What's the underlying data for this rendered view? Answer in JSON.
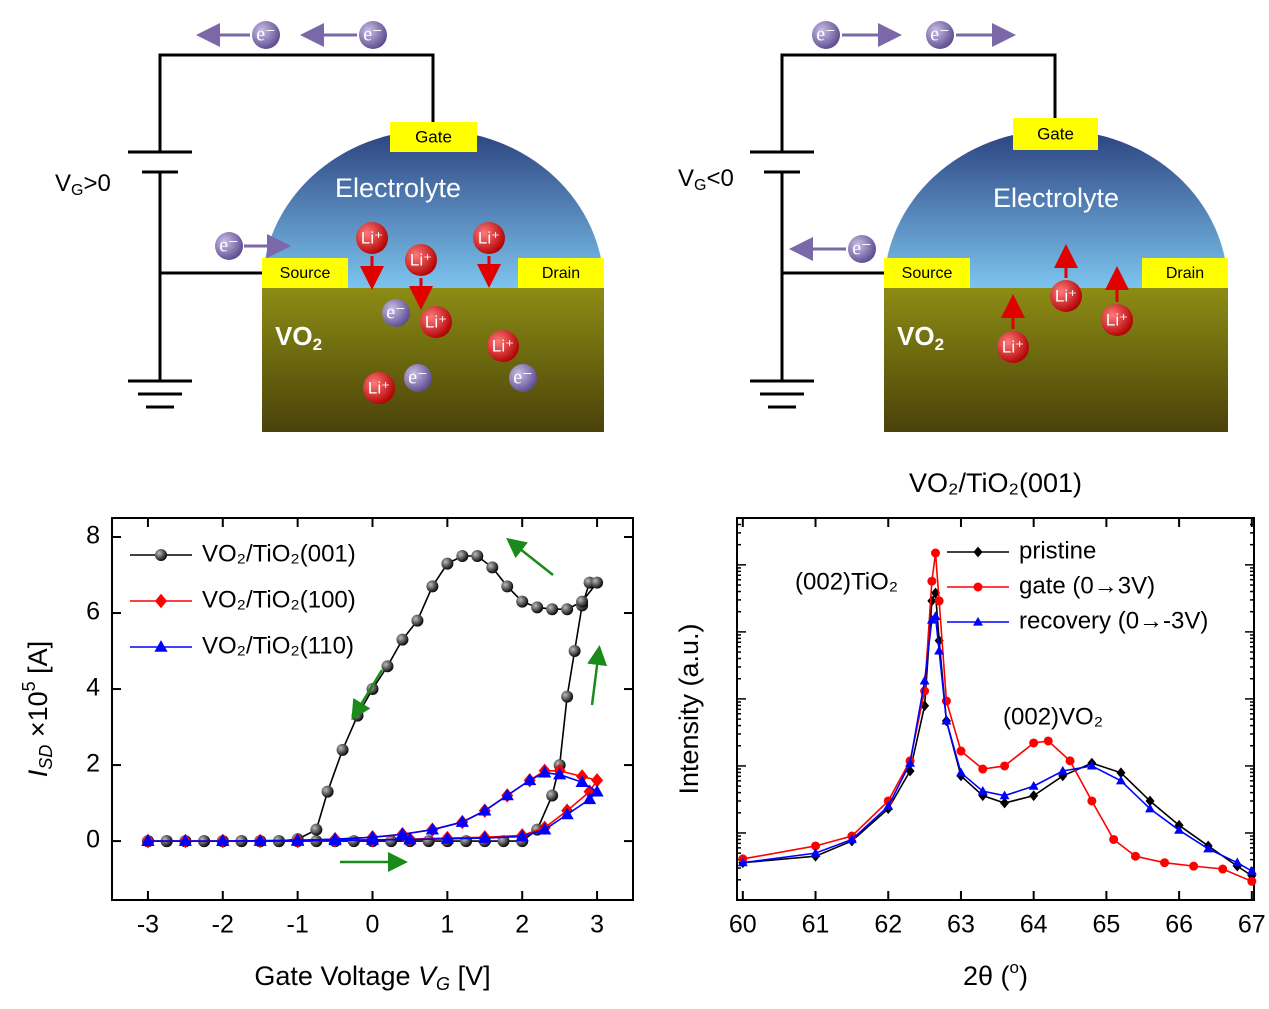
{
  "diagrams": [
    {
      "gate": "Gate",
      "electrolyte": "Electrolyte",
      "source": "Source",
      "drain": "Drain",
      "film": [
        "VO",
        "2"
      ],
      "bias": [
        "V",
        "G",
        ">0"
      ],
      "electrons": [
        "e⁻",
        "e⁻",
        "e⁻",
        "e⁻",
        "e⁻",
        "e⁻"
      ],
      "ions": [
        "Li⁺",
        "Li⁺",
        "Li⁺",
        "Li⁺",
        "Li⁺",
        "Li⁺"
      ]
    },
    {
      "gate": "Gate",
      "electrolyte": "Electrolyte",
      "source": "Source",
      "drain": "Drain",
      "film": [
        "VO",
        "2"
      ],
      "bias": [
        "V",
        "G",
        "<0"
      ],
      "electrons": [
        "e⁻",
        "e⁻",
        "e⁻"
      ],
      "ions": [
        "Li⁺",
        "Li⁺",
        "Li⁺"
      ]
    }
  ],
  "chart_data": [
    {
      "type": "line",
      "xlabel": [
        "Gate Voltage ",
        "V",
        "G",
        " [V]"
      ],
      "ylabel": [
        "I",
        "SD",
        " ×10",
        "5",
        " [A]"
      ],
      "xlim": [
        -3.48,
        3.48
      ],
      "xticks": [
        -3,
        -2,
        -1,
        0,
        1,
        2,
        3
      ],
      "ylim": [
        -1.55,
        8.5
      ],
      "yticks": [
        0,
        2,
        4,
        6,
        8
      ],
      "legend": "upper left",
      "series": [
        {
          "name": "VO₂/TiO₂(001)",
          "color": "#000000",
          "marker": "circle",
          "x": [
            -3,
            -2.75,
            -2.5,
            -2.25,
            -2,
            -1.75,
            -1.5,
            -1.25,
            -1,
            -0.75,
            -0.5,
            -0.25,
            0,
            0.25,
            0.5,
            0.75,
            1,
            1.25,
            1.5,
            1.75,
            2,
            2.2,
            2.4,
            2.5,
            2.6,
            2.7,
            2.8,
            2.9,
            3,
            2.8,
            2.6,
            2.4,
            2.2,
            2,
            1.8,
            1.6,
            1.4,
            1.2,
            1,
            0.8,
            0.6,
            0.4,
            0.2,
            0,
            -0.2,
            -0.4,
            -0.6,
            -0.75,
            -1,
            -1.25,
            -1.5,
            -1.75,
            -2,
            -2.25,
            -2.5,
            -2.75,
            -3
          ],
          "values": [
            0,
            0,
            0,
            0,
            0,
            0,
            0,
            0,
            0,
            0,
            0,
            0,
            0,
            0,
            0,
            0,
            0,
            0,
            0,
            0,
            0,
            0.3,
            1.2,
            2,
            3.8,
            5,
            6.2,
            6.8,
            6.8,
            6.3,
            6.1,
            6.1,
            6.15,
            6.3,
            6.7,
            7.2,
            7.5,
            7.5,
            7.3,
            6.7,
            5.8,
            5.3,
            4.6,
            4,
            3.3,
            2.4,
            1.3,
            0.3,
            0.05,
            0,
            0,
            0,
            0,
            0,
            0,
            0,
            0
          ]
        },
        {
          "name": "VO₂/TiO₂(100)",
          "color": "#ff0000",
          "marker": "diamond",
          "x": [
            -3,
            -2.5,
            -2,
            -1.5,
            -1,
            -0.5,
            0,
            0.5,
            1,
            1.5,
            2,
            2.3,
            2.6,
            2.9,
            3,
            2.8,
            2.5,
            2.3,
            2.1,
            1.8,
            1.5,
            1.2,
            0.8,
            0.4,
            0,
            -0.5,
            -1,
            -2,
            -3
          ],
          "values": [
            0,
            0,
            0,
            0,
            0,
            0.02,
            0.03,
            0.05,
            0.08,
            0.1,
            0.15,
            0.35,
            0.8,
            1.3,
            1.6,
            1.7,
            1.85,
            1.85,
            1.6,
            1.2,
            0.8,
            0.5,
            0.3,
            0.18,
            0.1,
            0.05,
            0.02,
            0,
            0
          ]
        },
        {
          "name": "VO₂/TiO₂(110)",
          "color": "#0000ff",
          "marker": "triangle",
          "x": [
            -3,
            -2.5,
            -2,
            -1.5,
            -1,
            -0.5,
            0,
            0.5,
            1,
            1.5,
            2,
            2.3,
            2.6,
            2.9,
            3,
            2.8,
            2.5,
            2.3,
            2.1,
            1.8,
            1.5,
            1.2,
            0.8,
            0.4,
            0,
            -0.5,
            -1,
            -2,
            -3
          ],
          "values": [
            0,
            0,
            0,
            0,
            0,
            0.02,
            0.03,
            0.04,
            0.06,
            0.08,
            0.12,
            0.3,
            0.7,
            1.1,
            1.3,
            1.55,
            1.75,
            1.8,
            1.6,
            1.2,
            0.8,
            0.5,
            0.3,
            0.18,
            0.1,
            0.05,
            0.02,
            0,
            0
          ]
        }
      ]
    },
    {
      "type": "line",
      "title": "VO₂/TiO₂(001)",
      "xlabel": [
        "2θ (",
        "o",
        ")"
      ],
      "ylabel": [
        "Intensity (a.u.)"
      ],
      "log_y": true,
      "xlim": [
        59.92,
        67.03
      ],
      "xticks": [
        60,
        61,
        62,
        63,
        64,
        65,
        66,
        67
      ],
      "ylim": [
        1,
        500000
      ],
      "legend": "upper right",
      "annotations": [
        "(002)TiO₂",
        "(002)VO₂"
      ],
      "series": [
        {
          "name": "pristine",
          "color": "#000000",
          "marker": "diamond",
          "x": [
            60,
            61,
            61.5,
            62,
            62.3,
            62.5,
            62.6,
            62.65,
            62.7,
            62.8,
            63,
            63.3,
            63.6,
            64,
            64.4,
            64.8,
            65.2,
            65.6,
            66,
            66.4,
            66.8,
            67
          ],
          "values": [
            3.6,
            4.5,
            7.6,
            23,
            84,
            790,
            29000,
            38000,
            7400,
            470,
            71,
            36,
            28,
            36,
            71,
            110,
            79,
            30,
            13,
            6.4,
            3.2,
            2.3
          ]
        },
        {
          "name": "gate (0→3V)",
          "color": "#ff0000",
          "marker": "circle",
          "x": [
            60,
            61,
            61.5,
            62,
            62.3,
            62.5,
            62.6,
            62.65,
            62.7,
            62.8,
            63,
            63.3,
            63.6,
            64,
            64.2,
            64.5,
            64.8,
            65.1,
            65.4,
            65.8,
            66.2,
            66.6,
            67
          ],
          "values": [
            4.1,
            6.4,
            9,
            30,
            119,
            1310,
            57000,
            150000,
            29000,
            930,
            167,
            90,
            100,
            220,
            236,
            119,
            30,
            8,
            4.5,
            3.6,
            3.2,
            2.9,
            1.9
          ]
        },
        {
          "name": "recovery (0→-3V)",
          "color": "#0000ff",
          "marker": "triangle",
          "x": [
            60,
            61,
            61.5,
            62,
            62.3,
            62.5,
            62.6,
            62.65,
            62.7,
            62.8,
            63,
            63.3,
            63.6,
            64,
            64.4,
            64.8,
            65.2,
            65.6,
            66,
            66.4,
            66.8,
            67
          ],
          "values": [
            3.6,
            5,
            8,
            25,
            110,
            1860,
            15000,
            17000,
            5200,
            470,
            79,
            42,
            36,
            50,
            84,
            100,
            60,
            23,
            11,
            5.8,
            3.6,
            2.7
          ]
        }
      ]
    }
  ]
}
